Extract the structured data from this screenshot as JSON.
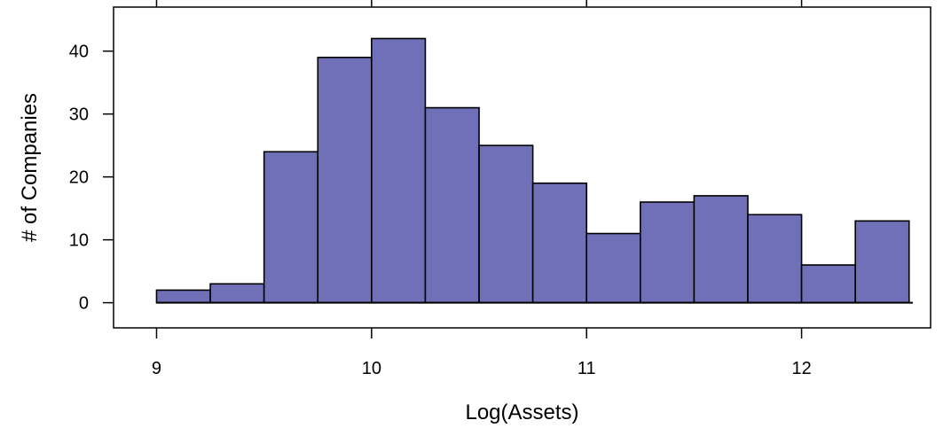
{
  "chart_data": {
    "type": "bar",
    "subtype": "histogram",
    "bin_edges": [
      9.0,
      9.25,
      9.5,
      9.75,
      10.0,
      10.25,
      10.5,
      10.75,
      11.0,
      11.25,
      11.5,
      11.75,
      12.0,
      12.25,
      12.5
    ],
    "values": [
      2,
      3,
      24,
      39,
      42,
      31,
      25,
      19,
      11,
      16,
      17,
      14,
      6,
      13
    ],
    "xlabel": "Log(Assets)",
    "ylabel": "# of Companies",
    "xlim": [
      8.8,
      12.6
    ],
    "ylim": [
      -4,
      47
    ],
    "x_ticks": [
      9,
      10,
      11,
      12
    ],
    "x_tick_labels": [
      "9",
      "10",
      "11",
      "12"
    ],
    "y_ticks": [
      0,
      10,
      20,
      30,
      40
    ],
    "y_tick_labels": [
      "0",
      "10",
      "20",
      "30",
      "40"
    ],
    "bar_color": "#7070b8",
    "edge_color": "#000000",
    "grid": false
  }
}
